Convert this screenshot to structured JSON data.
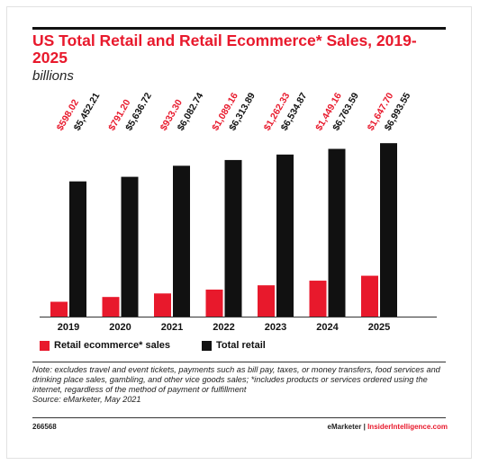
{
  "header": {
    "title": "US Total Retail and Retail Ecommerce* Sales, 2019-2025",
    "subtitle": "billions"
  },
  "chart_data": {
    "type": "bar",
    "categories": [
      "2019",
      "2020",
      "2021",
      "2022",
      "2023",
      "2024",
      "2025"
    ],
    "series": [
      {
        "name": "Retail ecommerce* sales",
        "color": "#e8192c",
        "values": [
          598.02,
          791.2,
          933.3,
          1089.16,
          1262.33,
          1449.16,
          1647.7
        ],
        "labels": [
          "$598.02",
          "$791.20",
          "$933.30",
          "$1,089.16",
          "$1,262.33",
          "$1,449.16",
          "$1,647.70"
        ]
      },
      {
        "name": "Total retail",
        "color": "#111111",
        "values": [
          5452.21,
          5636.72,
          6082.74,
          6313.89,
          6534.87,
          6763.59,
          6993.55
        ],
        "labels": [
          "$5,452.21",
          "$5,636.72",
          "$6,082.74",
          "$6,313.89",
          "$6,534.87",
          "$6,763.59",
          "$6,993.55"
        ]
      }
    ],
    "ylim": [
      0,
      7000
    ],
    "grid": false,
    "legend": "bottom-left"
  },
  "note": "Note: excludes travel and event tickets, payments such as bill pay, taxes, or money transfers, food services and drinking place sales, gambling, and other vice goods sales; *includes products or services ordered using the internet, regardless of the method of payment or fulfillment",
  "source": "Source: eMarketer, May 2021",
  "footer": {
    "id": "266568",
    "brand_a": "eMarketer",
    "separator": "|",
    "brand_b": "InsiderIntelligence.com"
  }
}
